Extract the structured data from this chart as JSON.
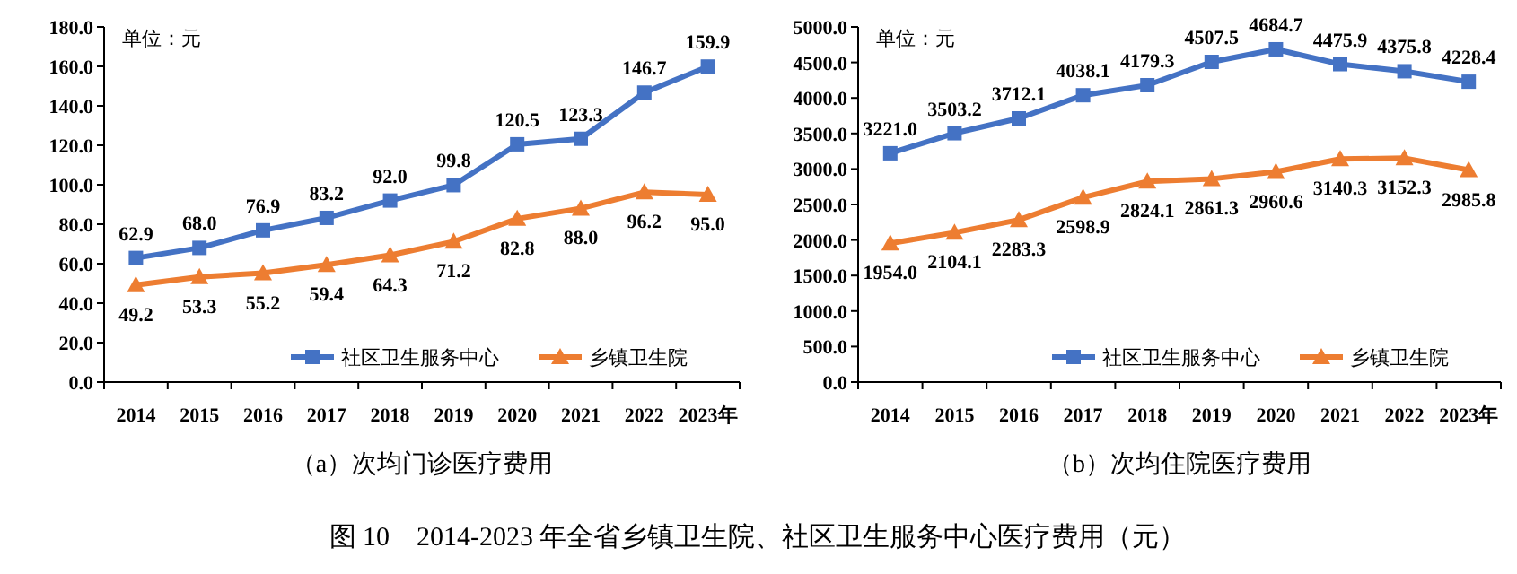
{
  "chart_data": [
    {
      "type": "line",
      "xlabel": "（a）次均门诊医疗费用",
      "categories": [
        "2014",
        "2015",
        "2016",
        "2017",
        "2018",
        "2019",
        "2020",
        "2021",
        "2022",
        "2023年"
      ],
      "series": [
        {
          "name": "社区卫生服务中心",
          "color": "#4472c4",
          "marker": "square",
          "values": [
            62.9,
            68,
            76.9,
            83.2,
            92,
            99.8,
            120.5,
            123.3,
            146.7,
            159.9
          ],
          "value_labels": [
            "62.9",
            "68.0",
            "76.9",
            "83.2",
            "92.0",
            "99.8",
            "120.5",
            "123.3",
            "146.7",
            "159.9"
          ]
        },
        {
          "name": "乡镇卫生院",
          "color": "#ed7d31",
          "marker": "triangle",
          "values": [
            49.2,
            53.3,
            55.2,
            59.4,
            64.3,
            71.2,
            82.8,
            88,
            96.2,
            95
          ],
          "value_labels": [
            "49.2",
            "53.3",
            "55.2",
            "59.4",
            "64.3",
            "71.2",
            "82.8",
            "88.0",
            "96.2",
            "95.0"
          ]
        }
      ],
      "ylim": [
        0,
        180
      ],
      "yticks": [
        {
          "value": 0,
          "label": "0.0"
        },
        {
          "value": 20,
          "label": "20.0"
        },
        {
          "value": 40,
          "label": "40.0"
        },
        {
          "value": 60,
          "label": "60.0"
        },
        {
          "value": 80,
          "label": "80.0"
        },
        {
          "value": 100,
          "label": "100.0"
        },
        {
          "value": 120,
          "label": "120.0"
        },
        {
          "value": 140,
          "label": "140.0"
        },
        {
          "value": 160,
          "label": "160.0"
        },
        {
          "value": 180,
          "label": "180.0"
        }
      ],
      "grid": false,
      "legend": "bottom right",
      "annotations": [
        "单位：元",
        "图 10　2014-2023 年全省乡镇卫生院、社区卫生服务中心医疗费用（元）"
      ]
    },
    {
      "type": "line",
      "xlabel": "（b）次均住院医疗费用",
      "categories": [
        "2014",
        "2015",
        "2016",
        "2017",
        "2018",
        "2019",
        "2020",
        "2021",
        "2022",
        "2023年"
      ],
      "series": [
        {
          "name": "社区卫生服务中心",
          "color": "#4472c4",
          "marker": "square",
          "values": [
            3221,
            3503.2,
            3712.1,
            4038.1,
            4179.3,
            4507.5,
            4684.7,
            4475.9,
            4375.8,
            4228.4
          ],
          "value_labels": [
            "3221.0",
            "3503.2",
            "3712.1",
            "4038.1",
            "4179.3",
            "4507.5",
            "4684.7",
            "4475.9",
            "4375.8",
            "4228.4"
          ]
        },
        {
          "name": "乡镇卫生院",
          "color": "#ed7d31",
          "marker": "triangle",
          "values": [
            1954,
            2104.1,
            2283.3,
            2598.9,
            2824.1,
            2861.3,
            2960.6,
            3140.3,
            3152.3,
            2985.8
          ],
          "value_labels": [
            "1954.0",
            "2104.1",
            "2283.3",
            "2598.9",
            "2824.1",
            "2861.3",
            "2960.6",
            "3140.3",
            "3152.3",
            "2985.8"
          ]
        }
      ],
      "ylim": [
        0,
        5000
      ],
      "yticks": [
        {
          "value": 0,
          "label": "0.0"
        },
        {
          "value": 500,
          "label": "500.0"
        },
        {
          "value": 1000,
          "label": "1000.0"
        },
        {
          "value": 1500,
          "label": "1500.0"
        },
        {
          "value": 2000,
          "label": "2000.0"
        },
        {
          "value": 2500,
          "label": "2500.0"
        },
        {
          "value": 3000,
          "label": "3000.0"
        },
        {
          "value": 3500,
          "label": "3500.0"
        },
        {
          "value": 4000,
          "label": "4000.0"
        },
        {
          "value": 4500,
          "label": "4500.0"
        },
        {
          "value": 5000,
          "label": "5000.0"
        }
      ],
      "grid": false,
      "legend": "bottom right",
      "annotations": [
        "单位：元"
      ]
    }
  ]
}
